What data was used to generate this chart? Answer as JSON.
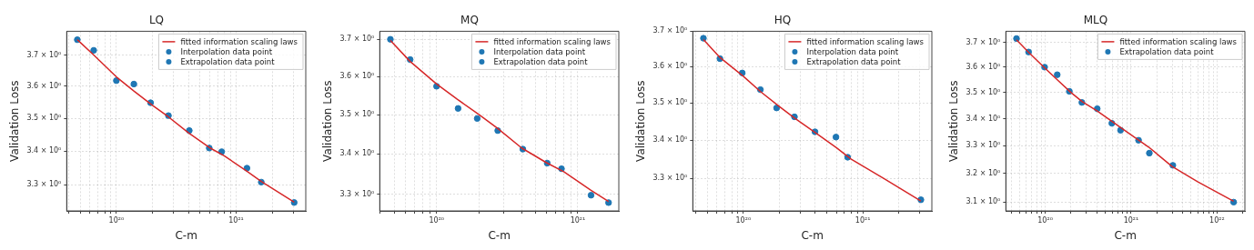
{
  "chart_data": [
    {
      "type": "scatter",
      "title": "LQ",
      "xlabel": "C-m",
      "ylabel": "Validation Loss",
      "log": "xy",
      "grid": true,
      "legend": "top right",
      "marker": "circle",
      "xlim": [
        3.85e+19,
        3.81e+21
      ],
      "ylim": [
        3.225,
        3.779
      ],
      "xticks": [
        {
          "value": 4e+19,
          "label": null
        },
        {
          "value": 5e+19,
          "label": null
        },
        {
          "value": 6e+19,
          "label": null
        },
        {
          "value": 7e+19,
          "label": null
        },
        {
          "value": 8e+19,
          "label": null
        },
        {
          "value": 9e+19,
          "label": null
        },
        {
          "value": 1e+20,
          "label": "10²⁰"
        },
        {
          "value": 2e+20,
          "label": null
        },
        {
          "value": 3e+20,
          "label": null
        },
        {
          "value": 4e+20,
          "label": null
        },
        {
          "value": 5e+20,
          "label": null
        },
        {
          "value": 6e+20,
          "label": null
        },
        {
          "value": 7e+20,
          "label": null
        },
        {
          "value": 8e+20,
          "label": null
        },
        {
          "value": 9e+20,
          "label": null
        },
        {
          "value": 1e+21,
          "label": "10²¹"
        },
        {
          "value": 2e+21,
          "label": null
        },
        {
          "value": 3e+21,
          "label": null
        }
      ],
      "yticks": [
        {
          "value": 3.3,
          "label": "3.3 × 10⁰"
        },
        {
          "value": 3.4,
          "label": "3.4 × 10⁰"
        },
        {
          "value": 3.5,
          "label": "3.5 × 10⁰"
        },
        {
          "value": 3.6,
          "label": "3.6 × 10⁰"
        },
        {
          "value": 3.7,
          "label": "3.7 × 10⁰"
        }
      ],
      "series": [
        {
          "name": "fitted information scaling laws",
          "type": "line",
          "marker": "none",
          "color": "#d62728",
          "x": [
            4.72e+19,
            6.5e+19,
            1e+20,
            1.4e+20,
            2e+20,
            2.7e+20,
            4e+20,
            6e+20,
            8e+20,
            1.23e+21,
            1.62e+21,
            3.05e+21
          ],
          "values": [
            3.751,
            3.7,
            3.63,
            3.585,
            3.54,
            3.505,
            3.455,
            3.41,
            3.385,
            3.34,
            3.31,
            3.25
          ]
        },
        {
          "name": "Interpolation data point",
          "color": "#1f77b4",
          "x": [
            4.72e+19,
            6.47e+19,
            1e+20,
            1.4e+20,
            1.93e+20,
            2.72e+20,
            4.06e+20,
            5.96e+20,
            7.57e+20
          ],
          "values": [
            3.751,
            3.716,
            3.618,
            3.607,
            3.548,
            3.508,
            3.462,
            3.409,
            3.398
          ]
        },
        {
          "name": "Extrapolation data point",
          "color": "#1f77b4",
          "x": [
            1.23e+21,
            1.62e+21,
            3.05e+21
          ],
          "values": [
            3.349,
            3.308,
            3.249
          ]
        }
      ]
    },
    {
      "type": "scatter",
      "title": "MQ",
      "xlabel": "C-m",
      "ylabel": "Validation Loss",
      "log": "xy",
      "grid": true,
      "legend": "top right",
      "marker": "circle",
      "xlim": [
        3.96e+19,
        1.95e+21
      ],
      "ylim": [
        3.26,
        3.722
      ],
      "xticks": [
        {
          "value": 4e+19,
          "label": null
        },
        {
          "value": 5e+19,
          "label": null
        },
        {
          "value": 6e+19,
          "label": null
        },
        {
          "value": 7e+19,
          "label": null
        },
        {
          "value": 8e+19,
          "label": null
        },
        {
          "value": 9e+19,
          "label": null
        },
        {
          "value": 1e+20,
          "label": "10²⁰"
        },
        {
          "value": 2e+20,
          "label": null
        },
        {
          "value": 3e+20,
          "label": null
        },
        {
          "value": 4e+20,
          "label": null
        },
        {
          "value": 5e+20,
          "label": null
        },
        {
          "value": 6e+20,
          "label": null
        },
        {
          "value": 7e+20,
          "label": null
        },
        {
          "value": 8e+20,
          "label": null
        },
        {
          "value": 9e+20,
          "label": null
        },
        {
          "value": 1e+21,
          "label": "10²¹"
        }
      ],
      "yticks": [
        {
          "value": 3.3,
          "label": "3.3 × 10⁰"
        },
        {
          "value": 3.4,
          "label": "3.4 × 10⁰"
        },
        {
          "value": 3.5,
          "label": "3.5 × 10⁰"
        },
        {
          "value": 3.6,
          "label": "3.6 × 10⁰"
        },
        {
          "value": 3.7,
          "label": "3.7 × 10⁰"
        }
      ],
      "series": [
        {
          "name": "fitted information scaling laws",
          "type": "line",
          "marker": "none",
          "color": "#d62728",
          "x": [
            4.71e+19,
            6.5e+19,
            1e+20,
            1.4e+20,
            2e+20,
            2.7e+20,
            4e+20,
            6e+20,
            8e+20,
            1.24e+21,
            1.65e+21
          ],
          "values": [
            3.697,
            3.64,
            3.58,
            3.54,
            3.5,
            3.465,
            3.415,
            3.378,
            3.355,
            3.31,
            3.283
          ]
        },
        {
          "name": "Interpolation data point",
          "color": "#1f77b4",
          "x": [
            4.71e+19,
            6.5e+19,
            1e+20,
            1.42e+20,
            1.94e+20,
            2.71e+20,
            4.08e+20,
            6.07e+20,
            7.66e+20
          ],
          "values": [
            3.7,
            3.645,
            3.574,
            3.516,
            3.49,
            3.459,
            3.412,
            3.377,
            3.363
          ]
        },
        {
          "name": "Extrapolation data point",
          "color": "#1f77b4",
          "x": [
            1.24e+21,
            1.65e+21
          ],
          "values": [
            3.298,
            3.28
          ]
        }
      ]
    },
    {
      "type": "scatter",
      "title": "HQ",
      "xlabel": "C-m",
      "ylabel": "Validation Loss",
      "log": "xy",
      "grid": true,
      "legend": "top right",
      "marker": "circle",
      "xlim": [
        3.78e+19,
        3.78e+21
      ],
      "ylim": [
        3.218,
        3.7
      ],
      "xticks": [
        {
          "value": 4e+19,
          "label": null
        },
        {
          "value": 5e+19,
          "label": null
        },
        {
          "value": 6e+19,
          "label": null
        },
        {
          "value": 7e+19,
          "label": null
        },
        {
          "value": 8e+19,
          "label": null
        },
        {
          "value": 9e+19,
          "label": null
        },
        {
          "value": 1e+20,
          "label": "10²⁰"
        },
        {
          "value": 2e+20,
          "label": null
        },
        {
          "value": 3e+20,
          "label": null
        },
        {
          "value": 4e+20,
          "label": null
        },
        {
          "value": 5e+20,
          "label": null
        },
        {
          "value": 6e+20,
          "label": null
        },
        {
          "value": 7e+20,
          "label": null
        },
        {
          "value": 8e+20,
          "label": null
        },
        {
          "value": 9e+20,
          "label": null
        },
        {
          "value": 1e+21,
          "label": "10²¹"
        },
        {
          "value": 2e+21,
          "label": null
        },
        {
          "value": 3e+21,
          "label": null
        }
      ],
      "yticks": [
        {
          "value": 3.3,
          "label": "3.3 × 10⁰"
        },
        {
          "value": 3.4,
          "label": "3.4 × 10⁰"
        },
        {
          "value": 3.5,
          "label": "3.5 × 10⁰"
        },
        {
          "value": 3.6,
          "label": "3.6 × 10⁰"
        },
        {
          "value": 3.7,
          "label": "3.7 × 10⁰"
        }
      ],
      "series": [
        {
          "name": "fitted information scaling laws",
          "type": "line",
          "marker": "none",
          "color": "#d62728",
          "x": [
            4.64e+19,
            6.4e+19,
            1e+20,
            1.4e+20,
            2e+20,
            2.7e+20,
            4e+20,
            6e+20,
            8e+20,
            1.5e+21,
            3.06e+21
          ],
          "values": [
            3.676,
            3.625,
            3.573,
            3.53,
            3.49,
            3.458,
            3.42,
            3.38,
            3.35,
            3.3,
            3.243
          ]
        },
        {
          "name": "Interpolation data point",
          "color": "#1f77b4",
          "x": [
            4.64e+19,
            6.38e+19,
            9.8e+19,
            1.39e+20,
            1.9e+20,
            2.68e+20,
            3.98e+20,
            5.96e+20,
            7.47e+20
          ],
          "values": [
            3.68,
            3.622,
            3.582,
            3.536,
            3.486,
            3.462,
            3.422,
            3.408,
            3.355
          ]
        },
        {
          "name": "Extrapolation data point",
          "color": "#1f77b4",
          "x": [
            3.06e+21
          ],
          "values": [
            3.246
          ]
        }
      ]
    },
    {
      "type": "scatter",
      "title": "MLQ",
      "xlabel": "C-m",
      "ylabel": "Validation Loss",
      "log": "xy",
      "grid": true,
      "legend": "top right",
      "marker": "circle",
      "xlim": [
        3.48e+19,
        2.11e+22
      ],
      "ylim": [
        3.071,
        3.746
      ],
      "xticks": [
        {
          "value": 4e+19,
          "label": null
        },
        {
          "value": 5e+19,
          "label": null
        },
        {
          "value": 6e+19,
          "label": null
        },
        {
          "value": 7e+19,
          "label": null
        },
        {
          "value": 8e+19,
          "label": null
        },
        {
          "value": 9e+19,
          "label": null
        },
        {
          "value": 1e+20,
          "label": "10²⁰"
        },
        {
          "value": 2e+20,
          "label": null
        },
        {
          "value": 3e+20,
          "label": null
        },
        {
          "value": 4e+20,
          "label": null
        },
        {
          "value": 5e+20,
          "label": null
        },
        {
          "value": 6e+20,
          "label": null
        },
        {
          "value": 7e+20,
          "label": null
        },
        {
          "value": 8e+20,
          "label": null
        },
        {
          "value": 9e+20,
          "label": null
        },
        {
          "value": 1e+21,
          "label": "10²¹"
        },
        {
          "value": 2e+21,
          "label": null
        },
        {
          "value": 3e+21,
          "label": null
        },
        {
          "value": 4e+21,
          "label": null
        },
        {
          "value": 5e+21,
          "label": null
        },
        {
          "value": 6e+21,
          "label": null
        },
        {
          "value": 7e+21,
          "label": null
        },
        {
          "value": 8e+21,
          "label": null
        },
        {
          "value": 9e+21,
          "label": null
        },
        {
          "value": 1e+22,
          "label": "10²²"
        },
        {
          "value": 2e+22,
          "label": null
        }
      ],
      "yticks": [
        {
          "value": 3.1,
          "label": "3.1 × 10⁰"
        },
        {
          "value": 3.2,
          "label": "3.2 × 10⁰"
        },
        {
          "value": 3.3,
          "label": "3.3 × 10⁰"
        },
        {
          "value": 3.4,
          "label": "3.4 × 10⁰"
        },
        {
          "value": 3.5,
          "label": "3.5 × 10⁰"
        },
        {
          "value": 3.6,
          "label": "3.6 × 10⁰"
        },
        {
          "value": 3.7,
          "label": "3.7 × 10⁰"
        }
      ],
      "series": [
        {
          "name": "fitted information scaling laws",
          "type": "line",
          "marker": "none",
          "color": "#d62728",
          "x": [
            4.63e+19,
            6.4e+19,
            1e+20,
            1.4e+20,
            2e+20,
            2.7e+20,
            4e+20,
            6e+20,
            1e+21,
            1.6e+21,
            3e+21,
            6e+21,
            1.56e+22
          ],
          "values": [
            3.711,
            3.66,
            3.595,
            3.548,
            3.5,
            3.465,
            3.43,
            3.39,
            3.34,
            3.295,
            3.225,
            3.17,
            3.103
          ]
        },
        {
          "name": "Extrapolation data point",
          "color": "#1f77b4",
          "x": [
            4.63e+19,
            6.4e+19,
            9.84e+19,
            1.38e+20,
            1.91e+20,
            2.67e+20,
            4.03e+20,
            5.96e+20,
            7.53e+20,
            1.22e+21,
            1.63e+21,
            3.06e+21,
            1.56e+22
          ],
          "values": [
            3.716,
            3.661,
            3.6,
            3.57,
            3.505,
            3.462,
            3.438,
            3.383,
            3.357,
            3.32,
            3.273,
            3.229,
            3.1
          ]
        }
      ]
    }
  ]
}
